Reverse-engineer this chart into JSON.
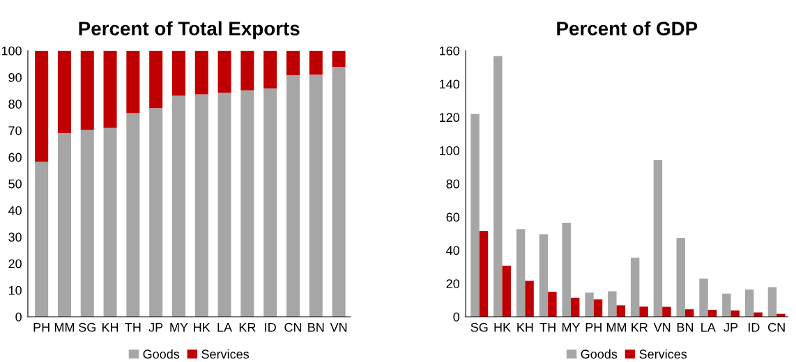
{
  "chart_data": [
    {
      "type": "bar",
      "title": "Percent of Total Exports",
      "stacked": true,
      "legend": "bottom",
      "grid": false,
      "categories": [
        "PH",
        "MM",
        "SG",
        "KH",
        "TH",
        "JP",
        "MY",
        "HK",
        "LA",
        "KR",
        "ID",
        "CN",
        "BN",
        "VN"
      ],
      "series": [
        {
          "name": "Goods",
          "color": "#a6a6a6",
          "values": [
            58.2,
            69.1,
            70.2,
            71.0,
            76.5,
            78.4,
            83.1,
            83.6,
            84.2,
            85.1,
            85.8,
            90.8,
            91.0,
            93.9
          ]
        },
        {
          "name": "Services",
          "color": "#c00000",
          "values": [
            41.8,
            30.9,
            29.8,
            29.0,
            23.5,
            21.6,
            16.9,
            16.4,
            15.8,
            14.9,
            14.2,
            9.2,
            9.0,
            6.1
          ]
        }
      ],
      "ylim": [
        0,
        100
      ],
      "yticks": [
        0,
        10,
        20,
        30,
        40,
        50,
        60,
        70,
        80,
        90,
        100
      ]
    },
    {
      "type": "bar",
      "title": "Percent of GDP",
      "stacked": false,
      "legend": "bottom",
      "grid": false,
      "categories": [
        "SG",
        "HK",
        "KH",
        "TH",
        "MY",
        "PH",
        "MM",
        "KR",
        "VN",
        "BN",
        "LA",
        "JP",
        "ID",
        "CN"
      ],
      "series": [
        {
          "name": "Goods",
          "color": "#a6a6a6",
          "values": [
            121.9,
            156.8,
            52.6,
            49.6,
            56.5,
            14.5,
            15.3,
            35.5,
            94.2,
            47.3,
            22.9,
            13.9,
            16.4,
            17.8
          ]
        },
        {
          "name": "Services",
          "color": "#c00000",
          "values": [
            51.5,
            30.7,
            21.6,
            15.0,
            11.4,
            10.4,
            6.9,
            6.1,
            6.0,
            4.5,
            4.2,
            3.8,
            2.6,
            1.8
          ]
        }
      ],
      "ylim": [
        0,
        160
      ],
      "yticks": [
        0,
        20,
        40,
        60,
        80,
        100,
        120,
        140,
        160
      ]
    }
  ]
}
